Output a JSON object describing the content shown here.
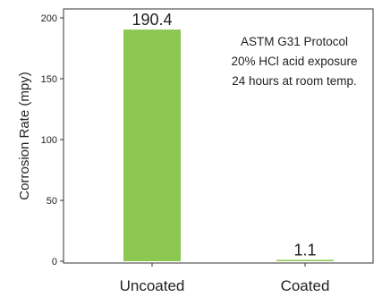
{
  "chart_data": {
    "type": "bar",
    "categories": [
      "Uncoated",
      "Coated"
    ],
    "values": [
      190.4,
      1.1
    ],
    "value_labels": [
      "190.4",
      "1.1"
    ],
    "title": "",
    "xlabel": "",
    "ylabel": "Corrosion Rate (mpy)",
    "ylim": [
      0,
      205
    ],
    "yticks": [
      0,
      50,
      100,
      150,
      200
    ],
    "grid": false,
    "bar_color": "#8cc751",
    "annotation": [
      "ASTM G31 Protocol",
      "20% HCl acid exposure",
      "24 hours at room temp."
    ]
  }
}
